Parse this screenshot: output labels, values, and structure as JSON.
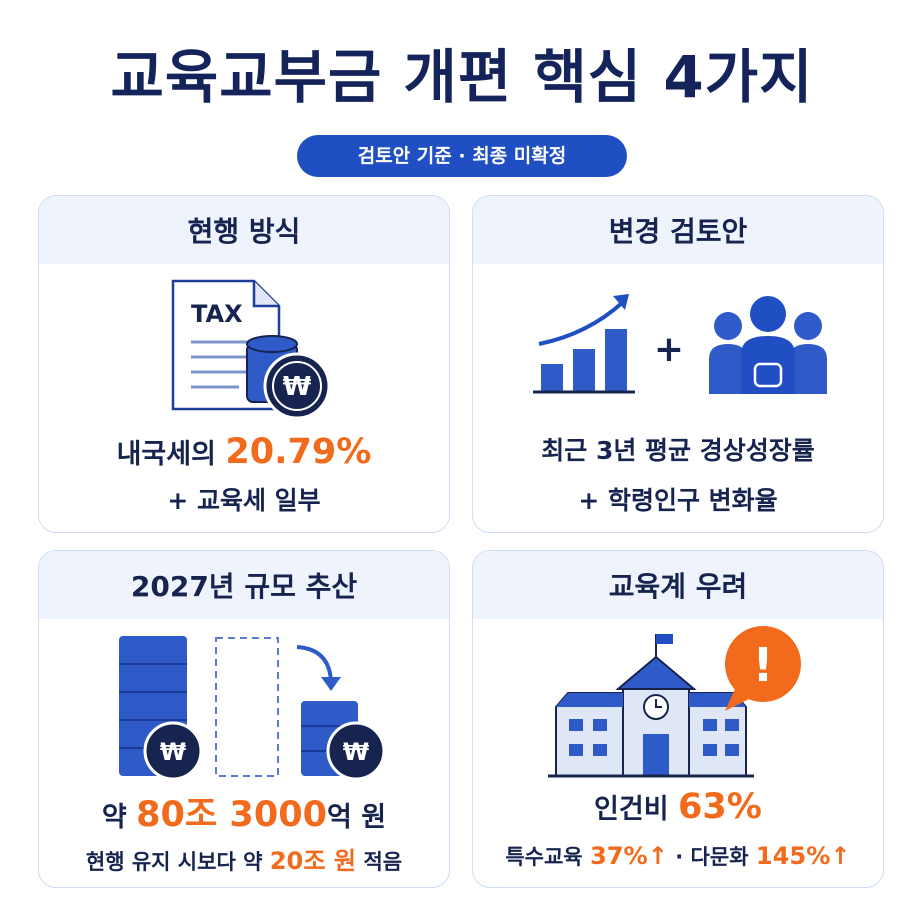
{
  "title": "교육교부금 개편 핵심 4가지",
  "badge": "검토안 기준 · 최종 미확정",
  "cards": [
    {
      "title": "현행 방식",
      "icon_texts": [
        "TAX",
        "₩"
      ],
      "lines": [
        [
          {
            "text": "내국세의 ",
            "emphasis": false
          },
          {
            "text": "20.79%",
            "emphasis": true
          }
        ],
        [
          {
            "text": "+ 교육세 일부",
            "emphasis": false
          }
        ]
      ]
    },
    {
      "title": "변경 검토안",
      "icon_texts": [
        "+"
      ],
      "lines": [
        [
          {
            "text": "최근 3년 평균 경상성장률",
            "emphasis": false
          }
        ],
        [
          {
            "text": "+ 학령인구 변화율",
            "emphasis": false
          }
        ]
      ]
    },
    {
      "title": "2027년 규모 추산",
      "icon_texts": [
        "₩",
        "₩"
      ],
      "lines": [
        [
          {
            "text": "약 ",
            "emphasis": false
          },
          {
            "text": "80조 3000",
            "emphasis": true
          },
          {
            "text": "억 원",
            "emphasis": false
          }
        ],
        [
          {
            "text": "현행 유지 시보다 약 ",
            "emphasis": false
          },
          {
            "text": "20조 원",
            "emphasis": true
          },
          {
            "text": " 적음",
            "emphasis": false
          }
        ]
      ]
    },
    {
      "title": "교육계 우려",
      "icon_texts": [
        "!"
      ],
      "lines": [
        [
          {
            "text": "인건비 ",
            "emphasis": false
          },
          {
            "text": "63%",
            "emphasis": true
          }
        ],
        [
          {
            "text": "특수교육 ",
            "emphasis": false
          },
          {
            "text": "37%↑",
            "emphasis": true
          },
          {
            "text": " · 다문화 ",
            "emphasis": false
          },
          {
            "text": "145%↑",
            "emphasis": true
          }
        ]
      ]
    }
  ]
}
